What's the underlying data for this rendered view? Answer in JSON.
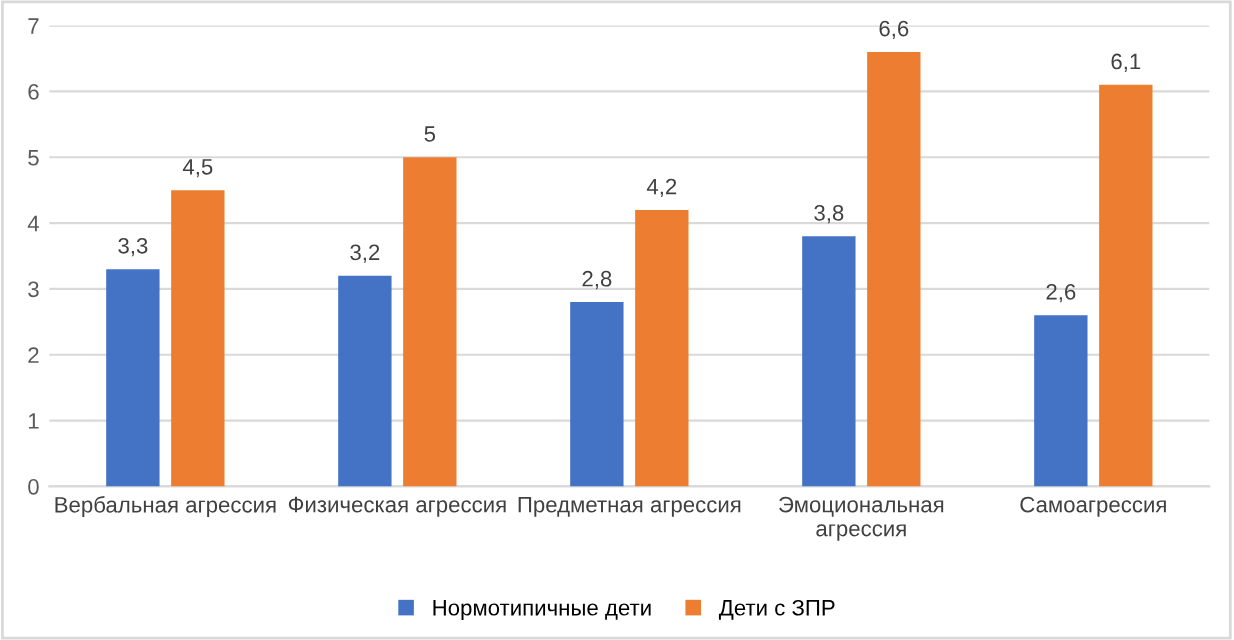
{
  "chart_data": {
    "type": "bar",
    "categories": [
      "Вербальная агрессия",
      "Физическая агрессия",
      "Предметная агрессия",
      "Эмоциональная\nагрессия",
      "Самоагрессия"
    ],
    "series": [
      {
        "name": "Нормотипичные дети",
        "color": "#4472c4",
        "values": [
          3.3,
          3.2,
          2.8,
          3.8,
          2.6
        ],
        "value_labels": [
          "3,3",
          "3,2",
          "2,8",
          "3,8",
          "2,6"
        ]
      },
      {
        "name": "Дети с ЗПР",
        "color": "#ed7d31",
        "values": [
          4.5,
          5,
          4.2,
          6.6,
          6.1
        ],
        "value_labels": [
          "4,5",
          "5",
          "4,2",
          "6,6",
          "6,1"
        ]
      }
    ],
    "ylim": [
      0,
      7
    ],
    "yticks": [
      0,
      1,
      2,
      3,
      4,
      5,
      6,
      7
    ],
    "grid": "y",
    "legend": "bottom"
  }
}
